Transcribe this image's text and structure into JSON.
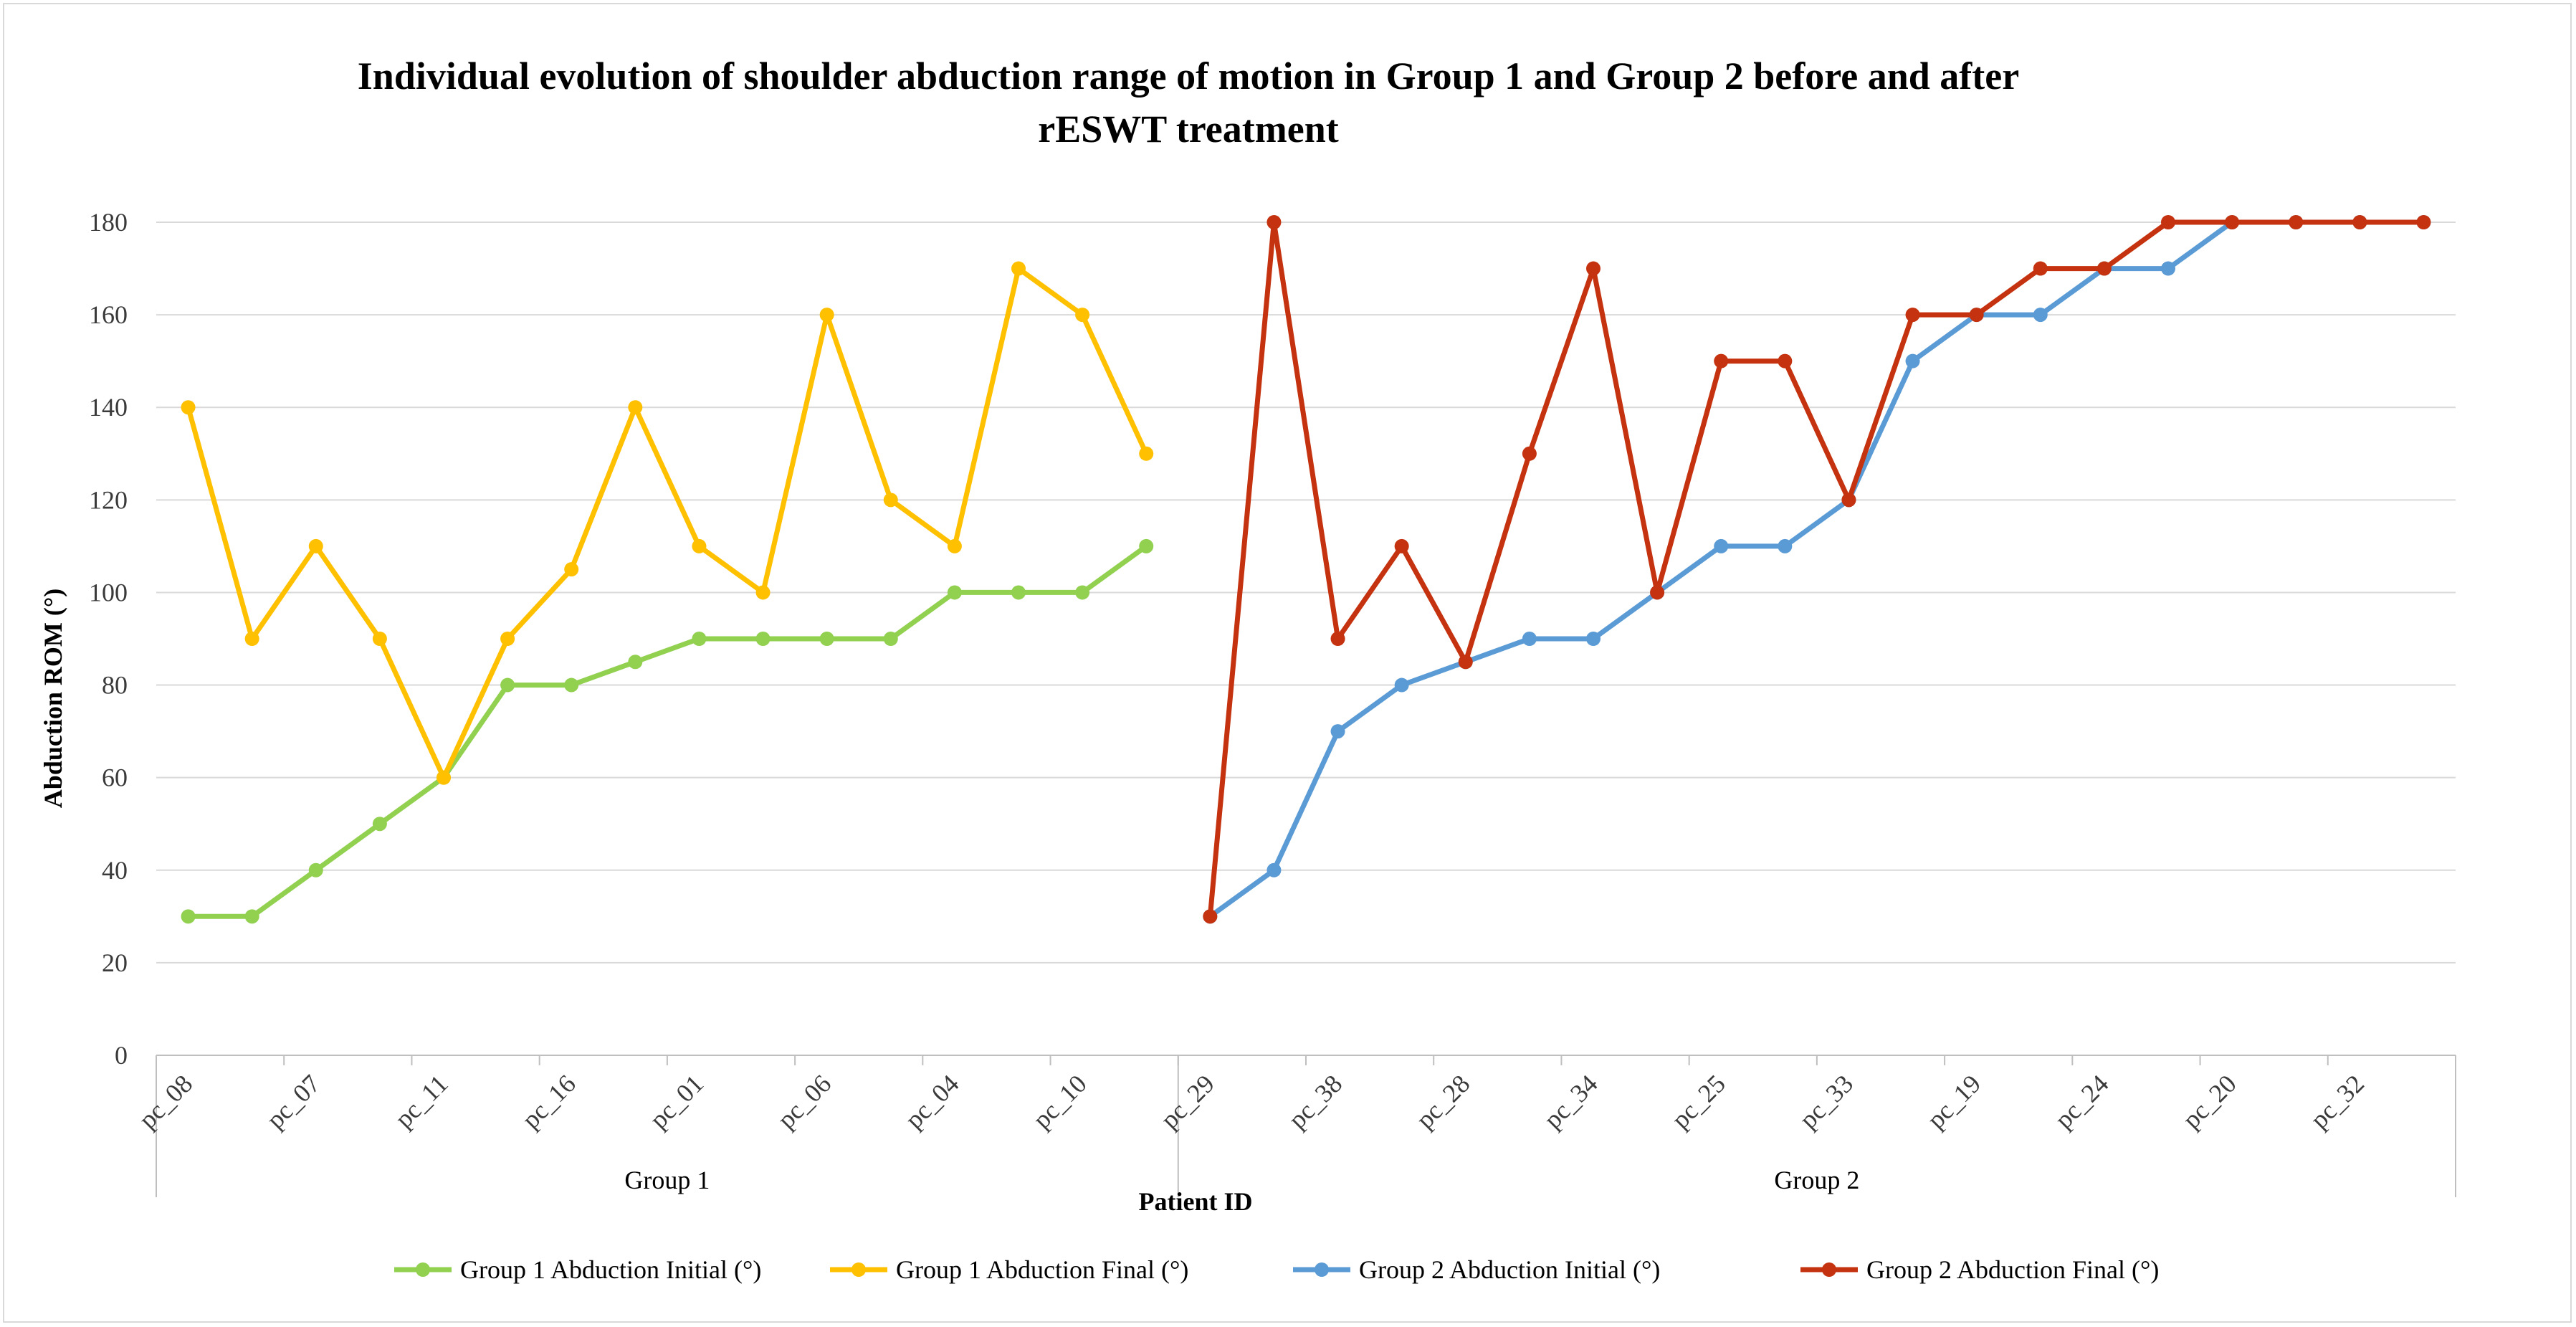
{
  "chart_data": {
    "type": "line",
    "title_lines": [
      "Individual evolution of shoulder abduction range of motion in Group 1 and Group 2 before and after",
      "rESWT treatment"
    ],
    "xlabel": "Patient ID",
    "ylabel": "Abduction ROM (°)",
    "ylim": [
      0,
      180
    ],
    "yticks": [
      0,
      20,
      40,
      60,
      80,
      100,
      120,
      140,
      160,
      180
    ],
    "grid": true,
    "legend_position": "bottom",
    "group_boundary_after_index": 16,
    "groups": [
      {
        "label": "Group 1",
        "start": 0,
        "end": 16
      },
      {
        "label": "Group 2",
        "start": 16,
        "end": 36
      }
    ],
    "x_tick_labels": [
      {
        "index": 0,
        "label": "pc_08"
      },
      {
        "index": 2,
        "label": "pc_07"
      },
      {
        "index": 4,
        "label": "pc_11"
      },
      {
        "index": 6,
        "label": "pc_16"
      },
      {
        "index": 8,
        "label": "pc_01"
      },
      {
        "index": 10,
        "label": "pc_06"
      },
      {
        "index": 12,
        "label": "pc_04"
      },
      {
        "index": 14,
        "label": "pc_10"
      },
      {
        "index": 16,
        "label": "pc_29"
      },
      {
        "index": 18,
        "label": "pc_38"
      },
      {
        "index": 20,
        "label": "pc_28"
      },
      {
        "index": 22,
        "label": "pc_34"
      },
      {
        "index": 24,
        "label": "pc_25"
      },
      {
        "index": 26,
        "label": "pc_33"
      },
      {
        "index": 28,
        "label": "pc_19"
      },
      {
        "index": 30,
        "label": "pc_24"
      },
      {
        "index": 32,
        "label": "pc_20"
      },
      {
        "index": 34,
        "label": "pc_32"
      }
    ],
    "series": [
      {
        "name": "Group 1 Abduction Initial (°)",
        "color": "#92d050",
        "start_index": 0,
        "values": [
          30,
          30,
          40,
          50,
          60,
          80,
          80,
          85,
          90,
          90,
          90,
          90,
          100,
          100,
          100,
          110
        ]
      },
      {
        "name": "Group 1 Abduction Final (°)",
        "color": "#ffc000",
        "start_index": 0,
        "values": [
          140,
          90,
          110,
          90,
          60,
          90,
          105,
          140,
          110,
          100,
          160,
          120,
          110,
          170,
          160,
          130
        ]
      },
      {
        "name": "Group 2 Abduction Initial (°)",
        "color": "#5b9bd5",
        "start_index": 16,
        "values": [
          30,
          40,
          70,
          80,
          85,
          90,
          90,
          100,
          110,
          110,
          120,
          150,
          160,
          160,
          170,
          170,
          180,
          180,
          180,
          180
        ]
      },
      {
        "name": "Group 2 Abduction Final (°)",
        "color": "#c5320f",
        "start_index": 16,
        "values": [
          30,
          180,
          90,
          110,
          85,
          130,
          170,
          100,
          150,
          150,
          120,
          160,
          160,
          170,
          170,
          180,
          180,
          180,
          180,
          180
        ]
      }
    ]
  }
}
